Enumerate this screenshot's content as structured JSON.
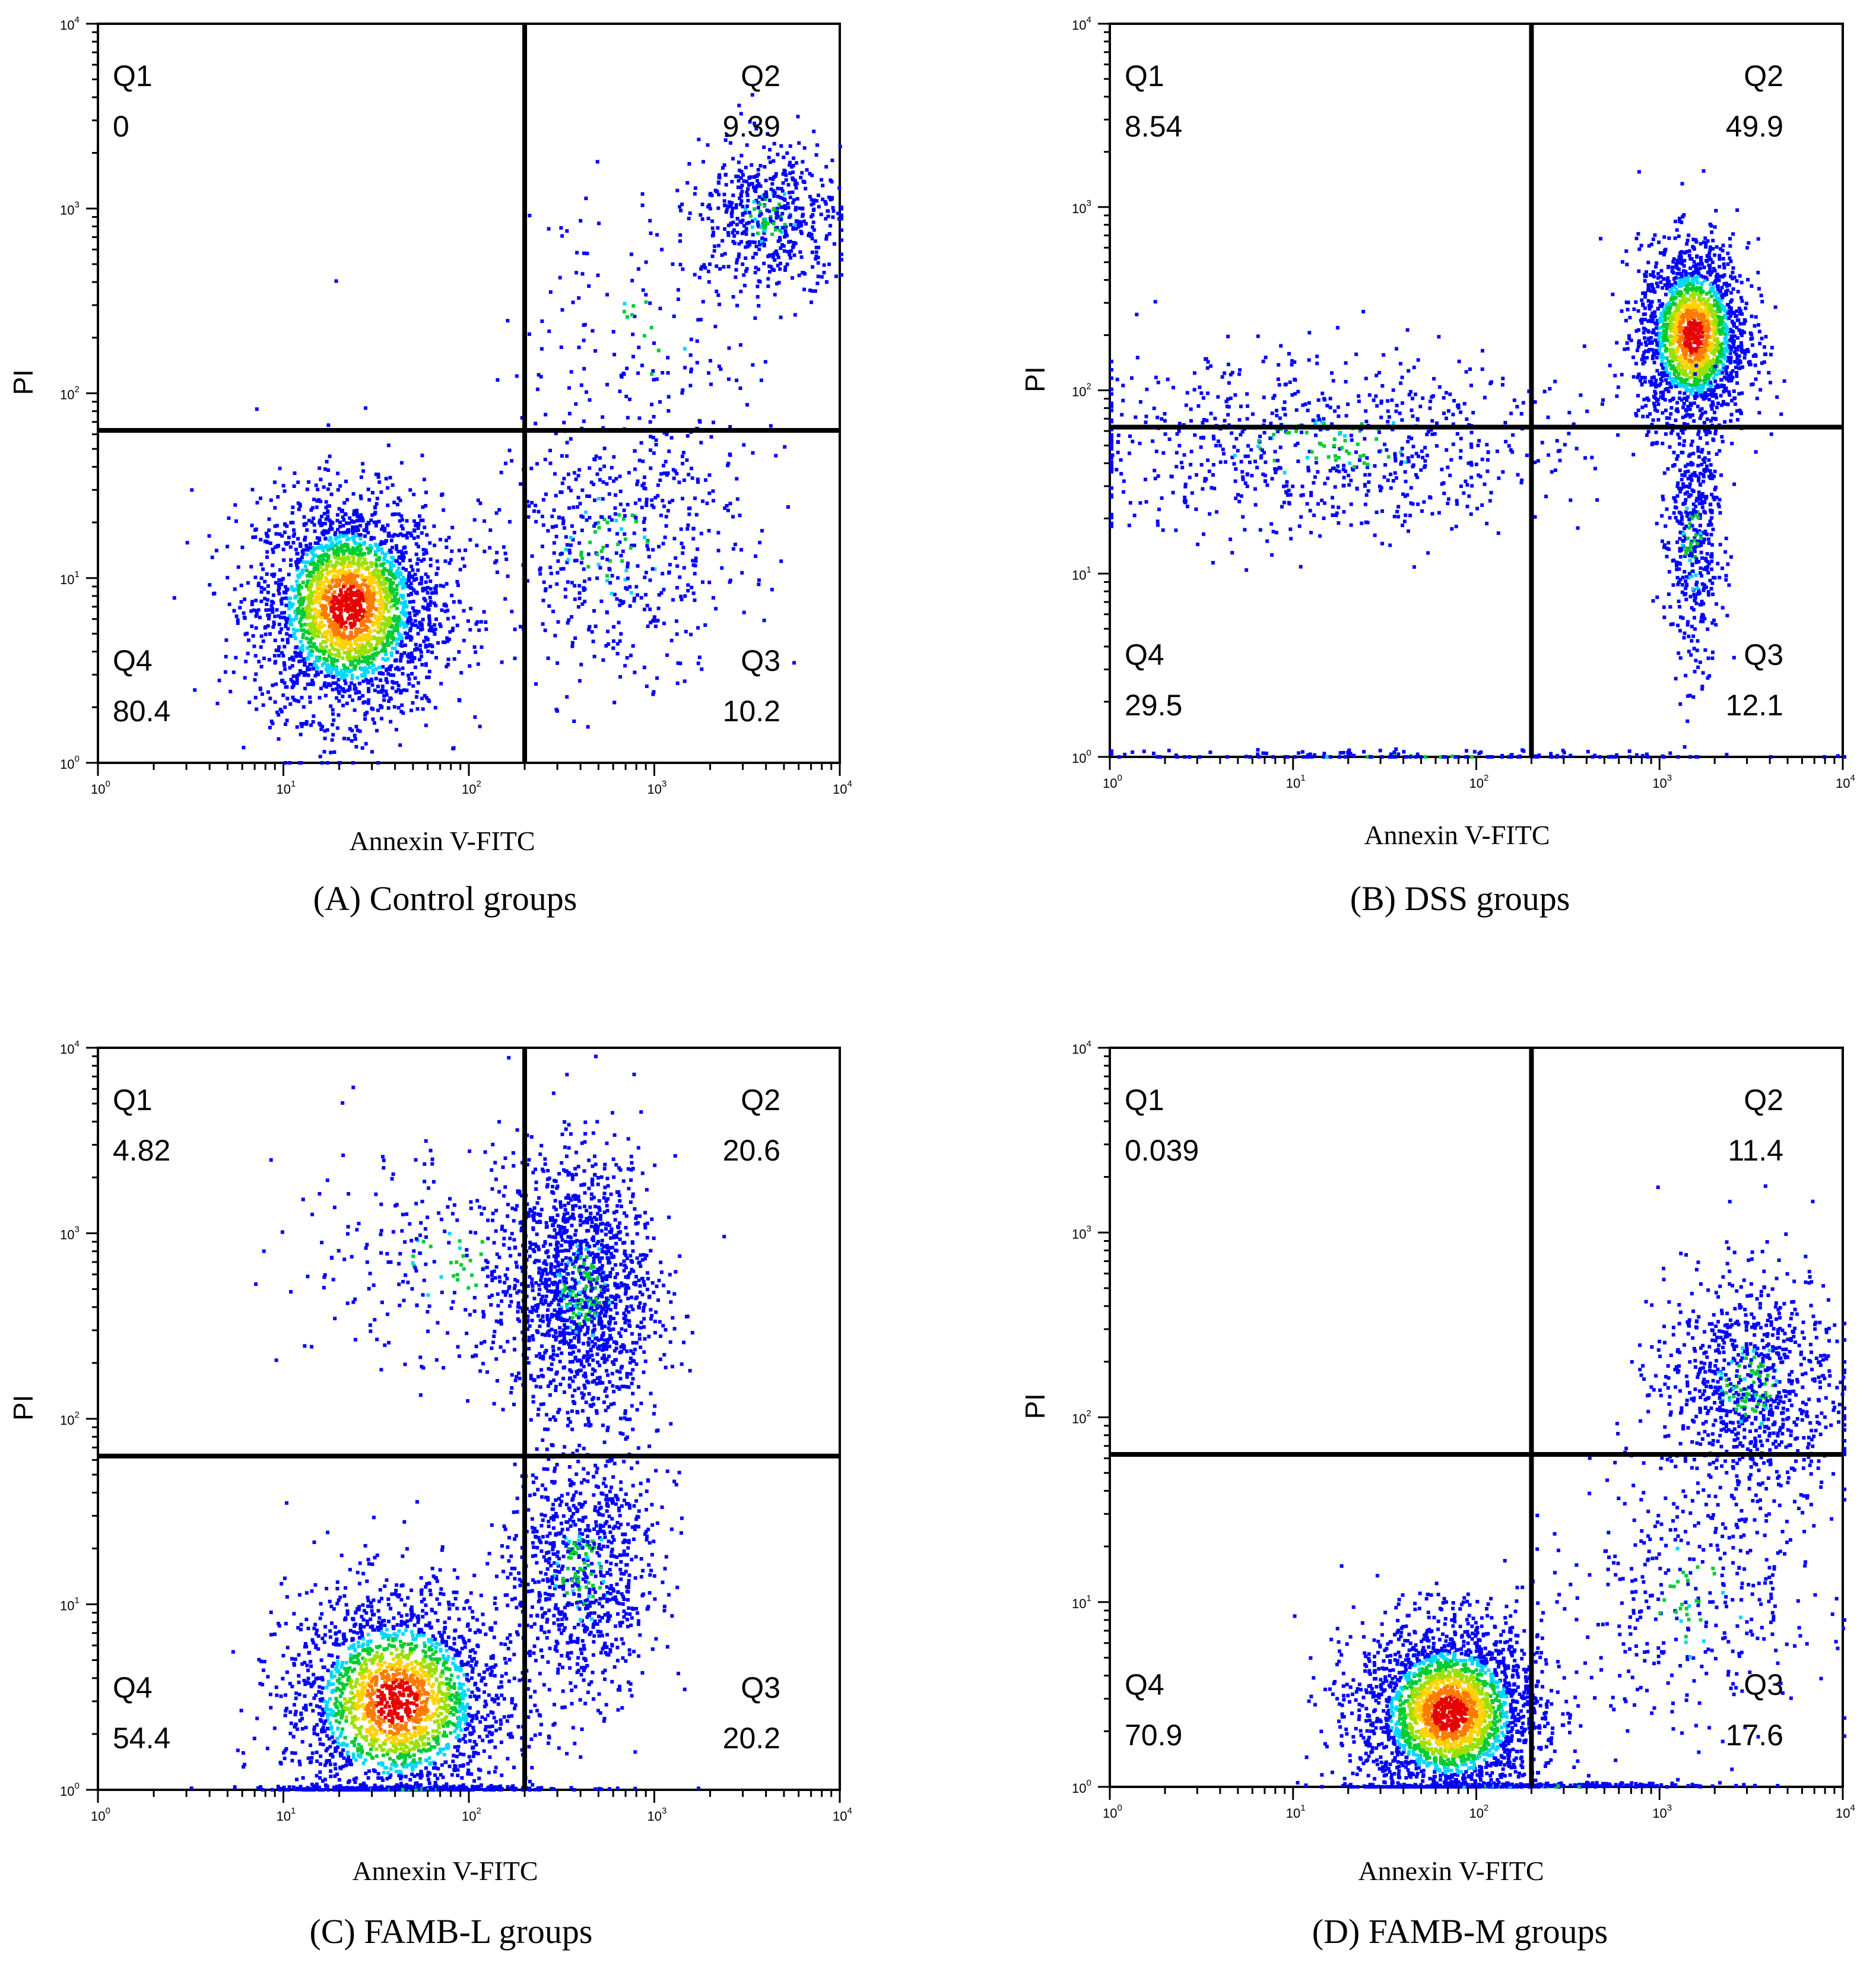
{
  "chart_data": [
    {
      "type": "scatter",
      "panel": "A",
      "caption": "(A) Control groups",
      "xlabel": "Annexin V-FITC",
      "ylabel": "PI",
      "x_scale": "log",
      "y_scale": "log",
      "xlim": [
        1,
        10000
      ],
      "ylim": [
        1,
        10000
      ],
      "x_ticks": [
        {
          "base": "10",
          "exp": "0"
        },
        {
          "base": "10",
          "exp": "1"
        },
        {
          "base": "10",
          "exp": "2"
        },
        {
          "base": "10",
          "exp": "3"
        },
        {
          "base": "10",
          "exp": "4"
        }
      ],
      "y_ticks": [
        {
          "base": "10",
          "exp": "0"
        },
        {
          "base": "10",
          "exp": "1"
        },
        {
          "base": "10",
          "exp": "2"
        },
        {
          "base": "10",
          "exp": "3"
        },
        {
          "base": "10",
          "exp": "4"
        }
      ],
      "gate": {
        "x": 200,
        "y": 63
      },
      "quadrants": [
        {
          "name": "Q1",
          "value": "0",
          "pos": "top-left"
        },
        {
          "name": "Q2",
          "value": "9.39",
          "pos": "top-right"
        },
        {
          "name": "Q3",
          "value": "10.2",
          "pos": "bottom-right"
        },
        {
          "name": "Q4",
          "value": "80.4",
          "pos": "bottom-left"
        }
      ],
      "clusters": [
        {
          "x": 22,
          "y": 7,
          "sx": 0.25,
          "sy": 0.3,
          "n": 2600,
          "dense": true
        },
        {
          "x": 4000,
          "y": 900,
          "sx": 0.2,
          "sy": 0.2,
          "n": 550
        },
        {
          "x": 600,
          "y": 15,
          "sx": 0.35,
          "sy": 0.35,
          "n": 550
        },
        {
          "x": 900,
          "y": 200,
          "sx": 0.35,
          "sy": 0.4,
          "n": 160
        }
      ]
    },
    {
      "type": "scatter",
      "panel": "B",
      "caption": "(B) DSS groups",
      "xlabel": "Annexin V-FITC",
      "ylabel": "PI",
      "x_scale": "log",
      "y_scale": "log",
      "xlim": [
        1,
        10000
      ],
      "ylim": [
        1,
        10000
      ],
      "x_ticks": [
        {
          "base": "10",
          "exp": "0"
        },
        {
          "base": "10",
          "exp": "1"
        },
        {
          "base": "10",
          "exp": "2"
        },
        {
          "base": "10",
          "exp": "3"
        },
        {
          "base": "10",
          "exp": "4"
        }
      ],
      "y_ticks": [
        {
          "base": "10",
          "exp": "0"
        },
        {
          "base": "10",
          "exp": "1"
        },
        {
          "base": "10",
          "exp": "2"
        },
        {
          "base": "10",
          "exp": "3"
        },
        {
          "base": "10",
          "exp": "4"
        }
      ],
      "gate": {
        "x": 200,
        "y": 63
      },
      "quadrants": [
        {
          "name": "Q1",
          "value": "8.54",
          "pos": "top-left"
        },
        {
          "name": "Q2",
          "value": "49.9",
          "pos": "top-right"
        },
        {
          "name": "Q3",
          "value": "12.1",
          "pos": "bottom-right"
        },
        {
          "name": "Q4",
          "value": "29.5",
          "pos": "bottom-left"
        }
      ],
      "clusters": [
        {
          "x": 1500,
          "y": 200,
          "sx": 0.15,
          "sy": 0.25,
          "n": 1800,
          "dense": true
        },
        {
          "x": 1500,
          "y": 15,
          "sx": 0.08,
          "sy": 0.35,
          "n": 450
        },
        {
          "x": 15,
          "y": 50,
          "sx": 0.7,
          "sy": 0.25,
          "n": 800
        },
        {
          "x": 50,
          "y": 1,
          "sx": 0.9,
          "sy": 0.02,
          "n": 150
        }
      ]
    },
    {
      "type": "scatter",
      "panel": "C",
      "caption": "(C) FAMB-L groups",
      "xlabel": "Annexin V-FITC",
      "ylabel": "PI",
      "x_scale": "log",
      "y_scale": "log",
      "xlim": [
        1,
        10000
      ],
      "ylim": [
        1,
        10000
      ],
      "x_ticks": [
        {
          "base": "10",
          "exp": "0"
        },
        {
          "base": "10",
          "exp": "1"
        },
        {
          "base": "10",
          "exp": "2"
        },
        {
          "base": "10",
          "exp": "3"
        },
        {
          "base": "10",
          "exp": "4"
        }
      ],
      "y_ticks": [
        {
          "base": "10",
          "exp": "0"
        },
        {
          "base": "10",
          "exp": "1"
        },
        {
          "base": "10",
          "exp": "2"
        },
        {
          "base": "10",
          "exp": "3"
        },
        {
          "base": "10",
          "exp": "4"
        }
      ],
      "gate": {
        "x": 200,
        "y": 63
      },
      "quadrants": [
        {
          "name": "Q1",
          "value": "4.82",
          "pos": "top-left"
        },
        {
          "name": "Q2",
          "value": "20.6",
          "pos": "top-right"
        },
        {
          "name": "Q3",
          "value": "20.2",
          "pos": "bottom-right"
        },
        {
          "name": "Q4",
          "value": "54.4",
          "pos": "bottom-left"
        }
      ],
      "clusters": [
        {
          "x": 40,
          "y": 3,
          "sx": 0.3,
          "sy": 0.3,
          "n": 2200,
          "dense": true
        },
        {
          "x": 400,
          "y": 500,
          "sx": 0.2,
          "sy": 0.35,
          "n": 1400
        },
        {
          "x": 400,
          "y": 15,
          "sx": 0.2,
          "sy": 0.35,
          "n": 900
        },
        {
          "x": 80,
          "y": 700,
          "sx": 0.4,
          "sy": 0.3,
          "n": 300
        },
        {
          "x": 50,
          "y": 1,
          "sx": 0.4,
          "sy": 0.02,
          "n": 250,
          "edge": true
        }
      ]
    },
    {
      "type": "scatter",
      "panel": "D",
      "caption": "(D) FAMB-M groups",
      "xlabel": "Annexin V-FITC",
      "ylabel": "PI",
      "x_scale": "log",
      "y_scale": "log",
      "xlim": [
        1,
        10000
      ],
      "ylim": [
        1,
        10000
      ],
      "x_ticks": [
        {
          "base": "10",
          "exp": "0"
        },
        {
          "base": "10",
          "exp": "1"
        },
        {
          "base": "10",
          "exp": "2"
        },
        {
          "base": "10",
          "exp": "3"
        },
        {
          "base": "10",
          "exp": "4"
        }
      ],
      "y_ticks": [
        {
          "base": "10",
          "exp": "0"
        },
        {
          "base": "10",
          "exp": "1"
        },
        {
          "base": "10",
          "exp": "2"
        },
        {
          "base": "10",
          "exp": "3"
        },
        {
          "base": "10",
          "exp": "4"
        }
      ],
      "gate": {
        "x": 200,
        "y": 63
      },
      "quadrants": [
        {
          "name": "Q1",
          "value": "0.039",
          "pos": "top-left"
        },
        {
          "name": "Q2",
          "value": "11.4",
          "pos": "top-right"
        },
        {
          "name": "Q3",
          "value": "17.6",
          "pos": "bottom-right"
        },
        {
          "name": "Q4",
          "value": "70.9",
          "pos": "bottom-left"
        }
      ],
      "clusters": [
        {
          "x": 70,
          "y": 2.5,
          "sx": 0.25,
          "sy": 0.25,
          "n": 2600,
          "dense": true
        },
        {
          "x": 3000,
          "y": 150,
          "sx": 0.25,
          "sy": 0.3,
          "n": 900
        },
        {
          "x": 1500,
          "y": 10,
          "sx": 0.35,
          "sy": 0.4,
          "n": 400
        },
        {
          "x": 200,
          "y": 1,
          "sx": 0.5,
          "sy": 0.02,
          "n": 200,
          "edge": true
        }
      ]
    }
  ]
}
